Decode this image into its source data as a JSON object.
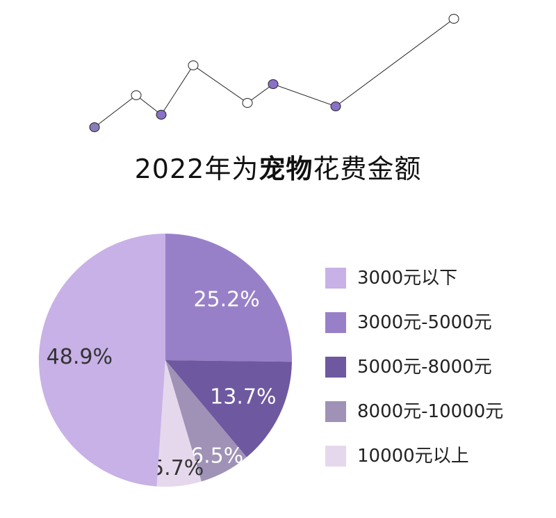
{
  "title": {
    "prefix": "2022年为",
    "bold": "宠物",
    "suffix": "花费金额"
  },
  "decoration": {
    "dot_fills": [
      "#8a7cb8",
      "#ffffff",
      "#8a70c6",
      "#ffffff",
      "#ffffff",
      "#8a70c6",
      "#8a70c6",
      "#ffffff"
    ]
  },
  "chart_data": {
    "type": "pie",
    "title": "2022年为宠物花费金额",
    "slices": [
      {
        "label": "3000元-5000元",
        "value": 25.2,
        "display": "25.2%",
        "color": "#9880c9",
        "text_color": "#ffffff"
      },
      {
        "label": "5000元-8000元",
        "value": 13.7,
        "display": "13.7%",
        "color": "#6e58a0",
        "text_color": "#ffffff"
      },
      {
        "label": "8000元-10000元",
        "value": 6.5,
        "display": "6.5%",
        "color": "#9f92b6",
        "text_color": "#ffffff"
      },
      {
        "label": "10000元以上",
        "value": 5.7,
        "display": "5.7%",
        "color": "#e6d8ec",
        "text_color": "#333333"
      },
      {
        "label": "3000元以下",
        "value": 48.9,
        "display": "48.9%",
        "color": "#c7b1e6",
        "text_color": "#333333"
      }
    ],
    "legend": [
      {
        "label": "3000元以下",
        "color": "#c7b1e6"
      },
      {
        "label": "3000元-5000元",
        "color": "#9880c9"
      },
      {
        "label": "5000元-8000元",
        "color": "#6e58a0"
      },
      {
        "label": "8000元-10000元",
        "color": "#9f92b6"
      },
      {
        "label": "10000元以上",
        "color": "#e6d8ec"
      }
    ],
    "legend_position": "right"
  }
}
